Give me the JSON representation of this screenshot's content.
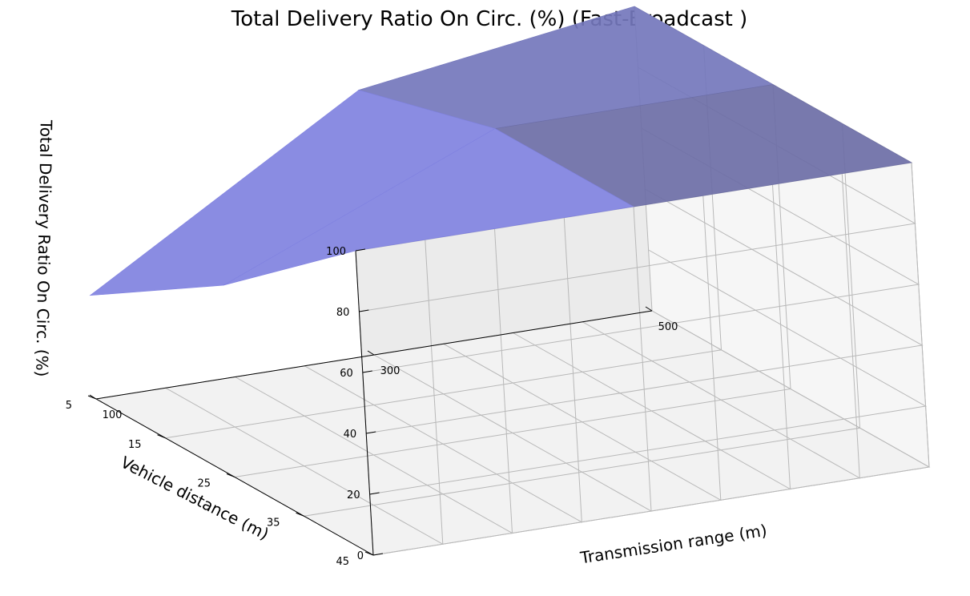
{
  "chart_data": {
    "type": "surface3d",
    "title": "Total Delivery Ratio On Circ. (%) (Fast-Broadcast )",
    "xlabel": "Transmission range (m)",
    "ylabel": "Vehicle distance (m)",
    "zlabel": "Total Delivery Ratio On Circ. (%)",
    "x_ticks": [
      100,
      300,
      500
    ],
    "y_ticks": [
      5,
      15,
      25,
      35,
      45
    ],
    "z_ticks": [
      0,
      20,
      40,
      60,
      80,
      100
    ],
    "xlim": [
      100,
      500
    ],
    "ylim": [
      5,
      45
    ],
    "zlim": [
      0,
      100
    ],
    "grid": true,
    "surface_color": "#6a6ee0",
    "x": [
      100,
      300,
      500
    ],
    "y": [
      5,
      25,
      45
    ],
    "z": [
      [
        34,
        87,
        100
      ],
      [
        63,
        100,
        100
      ],
      [
        100,
        100,
        100
      ]
    ]
  }
}
